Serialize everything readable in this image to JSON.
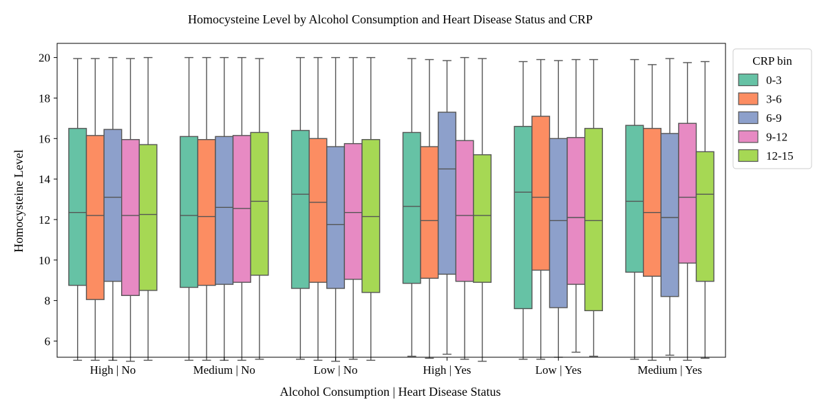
{
  "chart_data": {
    "type": "box",
    "title": "Homocysteine Level by Alcohol Consumption and Heart Disease Status and CRP",
    "xlabel": "Alcohol Consumption | Heart Disease Status",
    "ylabel": "Homocysteine Level",
    "ylim": [
      5.2,
      20.7
    ],
    "yticks": [
      6,
      8,
      10,
      12,
      14,
      16,
      18,
      20
    ],
    "categories": [
      "High | No",
      "Medium | No",
      "Low | No",
      "High | Yes",
      "Low | Yes",
      "Medium | Yes"
    ],
    "legend": {
      "title": "CRP bin",
      "placement": "outside-top-right"
    },
    "grid": false,
    "series": [
      {
        "name": "0-3",
        "color": "#66c2a5",
        "boxes": [
          {
            "min": 5.05,
            "q1": 8.75,
            "median": 12.35,
            "q3": 16.5,
            "max": 19.95
          },
          {
            "min": 5.05,
            "q1": 8.65,
            "median": 12.2,
            "q3": 16.1,
            "max": 20.0
          },
          {
            "min": 5.1,
            "q1": 8.6,
            "median": 13.25,
            "q3": 16.4,
            "max": 20.0
          },
          {
            "min": 5.25,
            "q1": 8.85,
            "median": 12.65,
            "q3": 16.3,
            "max": 19.95
          },
          {
            "min": 5.1,
            "q1": 7.6,
            "median": 13.35,
            "q3": 16.6,
            "max": 19.8
          },
          {
            "min": 5.1,
            "q1": 9.4,
            "median": 12.9,
            "q3": 16.65,
            "max": 19.9
          }
        ]
      },
      {
        "name": "3-6",
        "color": "#fc8d62",
        "boxes": [
          {
            "min": 5.05,
            "q1": 8.05,
            "median": 12.2,
            "q3": 16.15,
            "max": 19.95
          },
          {
            "min": 5.05,
            "q1": 8.75,
            "median": 12.15,
            "q3": 15.95,
            "max": 20.0
          },
          {
            "min": 5.05,
            "q1": 8.9,
            "median": 12.85,
            "q3": 16.0,
            "max": 20.0
          },
          {
            "min": 5.15,
            "q1": 9.1,
            "median": 11.95,
            "q3": 15.6,
            "max": 19.9
          },
          {
            "min": 5.1,
            "q1": 9.5,
            "median": 13.1,
            "q3": 17.1,
            "max": 19.9
          },
          {
            "min": 5.05,
            "q1": 9.2,
            "median": 12.35,
            "q3": 16.5,
            "max": 19.65
          }
        ]
      },
      {
        "name": "6-9",
        "color": "#8da0cb",
        "boxes": [
          {
            "min": 5.05,
            "q1": 8.95,
            "median": 13.1,
            "q3": 16.45,
            "max": 20.0
          },
          {
            "min": 5.05,
            "q1": 8.8,
            "median": 12.6,
            "q3": 16.1,
            "max": 20.0
          },
          {
            "min": 5.0,
            "q1": 8.6,
            "median": 11.75,
            "q3": 15.6,
            "max": 20.0
          },
          {
            "min": 5.35,
            "q1": 9.3,
            "median": 14.5,
            "q3": 17.3,
            "max": 19.85
          },
          {
            "min": 5.2,
            "q1": 7.65,
            "median": 11.95,
            "q3": 16.0,
            "max": 19.85
          },
          {
            "min": 5.3,
            "q1": 8.2,
            "median": 12.1,
            "q3": 16.25,
            "max": 19.95
          }
        ]
      },
      {
        "name": "9-12",
        "color": "#e78ac3",
        "boxes": [
          {
            "min": 5.0,
            "q1": 8.25,
            "median": 12.2,
            "q3": 15.95,
            "max": 19.95
          },
          {
            "min": 5.05,
            "q1": 8.9,
            "median": 12.55,
            "q3": 16.15,
            "max": 20.0
          },
          {
            "min": 5.1,
            "q1": 9.05,
            "median": 12.35,
            "q3": 15.75,
            "max": 20.0
          },
          {
            "min": 5.1,
            "q1": 8.95,
            "median": 12.2,
            "q3": 15.9,
            "max": 20.0
          },
          {
            "min": 5.45,
            "q1": 8.8,
            "median": 12.1,
            "q3": 16.05,
            "max": 19.9
          },
          {
            "min": 5.05,
            "q1": 9.85,
            "median": 13.1,
            "q3": 16.75,
            "max": 19.75
          }
        ]
      },
      {
        "name": "12-15",
        "color": "#a6d854",
        "boxes": [
          {
            "min": 5.05,
            "q1": 8.5,
            "median": 12.25,
            "q3": 15.7,
            "max": 20.0
          },
          {
            "min": 5.1,
            "q1": 9.25,
            "median": 12.9,
            "q3": 16.3,
            "max": 19.95
          },
          {
            "min": 5.05,
            "q1": 8.4,
            "median": 12.15,
            "q3": 15.95,
            "max": 20.0
          },
          {
            "min": 5.0,
            "q1": 8.9,
            "median": 12.2,
            "q3": 15.2,
            "max": 19.95
          },
          {
            "min": 5.25,
            "q1": 7.5,
            "median": 11.95,
            "q3": 16.5,
            "max": 19.9
          },
          {
            "min": 5.15,
            "q1": 8.95,
            "median": 13.25,
            "q3": 15.35,
            "max": 19.8
          }
        ]
      }
    ]
  }
}
